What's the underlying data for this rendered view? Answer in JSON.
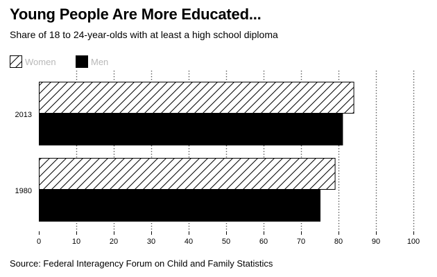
{
  "chart_data": {
    "type": "bar",
    "orientation": "horizontal",
    "title": "Young People Are More Educated...",
    "subtitle": "Share of 18 to 24-year-olds with at least a high school diploma",
    "source": "Source: Federal Interagency Forum on Child and Family Statistics",
    "categories": [
      "2013",
      "1980"
    ],
    "series": [
      {
        "name": "Women",
        "values": [
          84,
          79
        ],
        "fill": "hatch"
      },
      {
        "name": "Men",
        "values": [
          81,
          75
        ],
        "fill": "solid"
      }
    ],
    "xlim": [
      0,
      100
    ],
    "xticks": [
      0,
      10,
      20,
      30,
      40,
      50,
      60,
      70,
      80,
      90,
      100
    ],
    "tick_labels": [
      "0",
      "10",
      "20",
      "30",
      "40",
      "50",
      "60",
      "70",
      "80",
      "90",
      "100"
    ],
    "xlabel": "",
    "ylabel": "",
    "legend_position": "top-left",
    "grid": "vertical-dotted"
  },
  "colors": {
    "bar": "#000000",
    "hatch_background": "#ffffff",
    "legend_text": "#b8b8b8",
    "grid": "#555555"
  }
}
